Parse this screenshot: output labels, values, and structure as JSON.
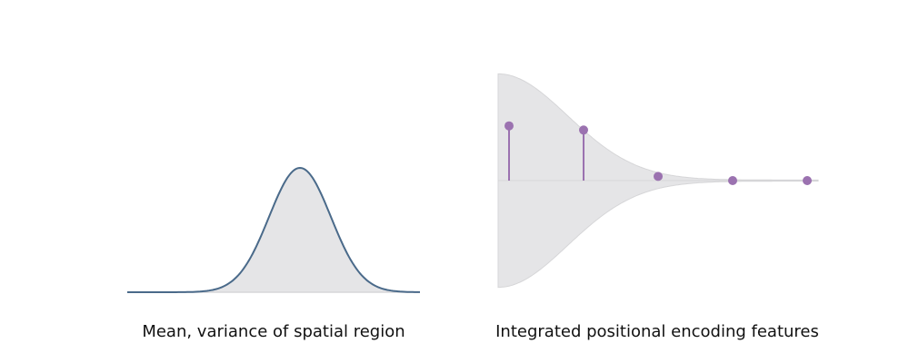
{
  "colors": {
    "curve": "#4a6a8a",
    "fill": "#e5e5e7",
    "fill_edge": "#d6d6d8",
    "feature": "#9b72b0",
    "label": "#111111"
  },
  "panels": {
    "left": {
      "label": "Mean, variance of spatial region",
      "curve": "gaussian"
    },
    "right": {
      "label": "Integrated positional encoding features",
      "feature_values": [
        0.52,
        0.48,
        0.04,
        0.0,
        0.0
      ],
      "envelope": "decaying"
    }
  }
}
